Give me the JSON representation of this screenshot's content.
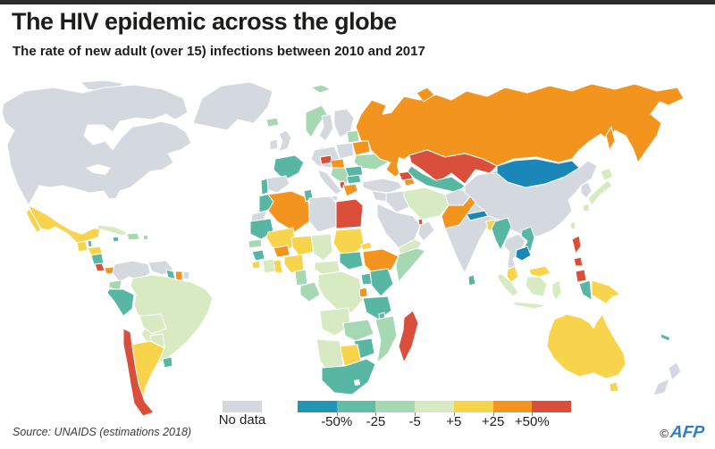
{
  "header": {
    "title": "The HIV epidemic across the globe",
    "subtitle": "The rate of new adult (over 15) infections between 2010 and 2017",
    "topbar_color": "#2b2b2a"
  },
  "legend": {
    "no_data_label": "No data",
    "no_data_color": "#d3d9de",
    "scale_ticks": [
      "-50%",
      "-25",
      "-5",
      "+5",
      "+25",
      "+50%"
    ],
    "scale_colors": [
      "#2196b4",
      "#62bda6",
      "#a6d8b4",
      "#d8eac2",
      "#f8d44d",
      "#f3941f",
      "#d94f3b"
    ]
  },
  "footer": {
    "source": "Source: UNAIDS (estimations 2018)",
    "credit_symbol": "©",
    "credit": "AFP",
    "credit_color": "#2e7fc1"
  },
  "map": {
    "ocean_color": "#ffffff",
    "palette": {
      "no_data": "#d3d9de",
      "m50": "#1b87b9",
      "m25": "#58b7a3",
      "dec5": "#a6d8b4",
      "stable": "#d8eac2",
      "inc5": "#f8d44d",
      "inc25": "#f3941f",
      "inc50": "#d94f3b"
    },
    "regions": [
      {
        "id": "greenland",
        "name": "Greenland",
        "category": "no_data"
      },
      {
        "id": "arctic-islands",
        "name": "Canadian Arctic islands",
        "category": "no_data"
      },
      {
        "id": "canada-usa",
        "name": "Canada and United States",
        "category": "no_data"
      },
      {
        "id": "mexico",
        "name": "Mexico",
        "category": "inc5"
      },
      {
        "id": "baja",
        "name": "Baja California",
        "category": "inc5"
      },
      {
        "id": "guatemala",
        "name": "Guatemala",
        "category": "inc5"
      },
      {
        "id": "belize",
        "name": "Belize",
        "category": "m25"
      },
      {
        "id": "honduras",
        "name": "Honduras",
        "category": "inc5"
      },
      {
        "id": "nicaragua",
        "name": "Nicaragua",
        "category": "m25"
      },
      {
        "id": "costa-rica",
        "name": "Costa Rica",
        "category": "inc50"
      },
      {
        "id": "panama",
        "name": "Panama",
        "category": "inc25"
      },
      {
        "id": "cuba",
        "name": "Cuba",
        "category": "stable"
      },
      {
        "id": "jamaica",
        "name": "Jamaica",
        "category": "m25"
      },
      {
        "id": "hispaniola",
        "name": "Hispaniola",
        "category": "dec5"
      },
      {
        "id": "puerto-rico",
        "name": "Puerto Rico",
        "category": "dec5"
      },
      {
        "id": "colombia",
        "name": "Colombia",
        "category": "no_data"
      },
      {
        "id": "venezuela",
        "name": "Venezuela",
        "category": "no_data"
      },
      {
        "id": "guyana",
        "name": "Guyana",
        "category": "m25"
      },
      {
        "id": "suriname",
        "name": "Suriname",
        "category": "inc25"
      },
      {
        "id": "fr-guiana",
        "name": "French Guiana",
        "category": "no_data"
      },
      {
        "id": "ecuador",
        "name": "Ecuador",
        "category": "dec5"
      },
      {
        "id": "peru",
        "name": "Peru",
        "category": "m25"
      },
      {
        "id": "brazil",
        "name": "Brazil",
        "category": "stable"
      },
      {
        "id": "bolivia",
        "name": "Bolivia",
        "category": "stable"
      },
      {
        "id": "paraguay",
        "name": "Paraguay",
        "category": "stable"
      },
      {
        "id": "argentina",
        "name": "Argentina",
        "category": "inc5"
      },
      {
        "id": "chile",
        "name": "Chile",
        "category": "inc50"
      },
      {
        "id": "uruguay",
        "name": "Uruguay",
        "category": "m25"
      },
      {
        "id": "iceland",
        "name": "Iceland",
        "category": "dec5"
      },
      {
        "id": "uk",
        "name": "United Kingdom",
        "category": "no_data"
      },
      {
        "id": "ireland",
        "name": "Ireland",
        "category": "no_data"
      },
      {
        "id": "norway",
        "name": "Norway",
        "category": "dec5"
      },
      {
        "id": "sweden",
        "name": "Sweden",
        "category": "no_data"
      },
      {
        "id": "finland",
        "name": "Finland",
        "category": "no_data"
      },
      {
        "id": "denmark",
        "name": "Denmark",
        "category": "no_data"
      },
      {
        "id": "baltics",
        "name": "Baltic states",
        "category": "dec5"
      },
      {
        "id": "poland",
        "name": "Poland",
        "category": "no_data"
      },
      {
        "id": "germany-central",
        "name": "Germany and central Europe",
        "category": "no_data"
      },
      {
        "id": "france",
        "name": "France",
        "category": "m25"
      },
      {
        "id": "spain",
        "name": "Spain",
        "category": "no_data"
      },
      {
        "id": "portugal",
        "name": "Portugal",
        "category": "m25"
      },
      {
        "id": "italy",
        "name": "Italy",
        "category": "no_data"
      },
      {
        "id": "sicily",
        "name": "Sicily",
        "category": "no_data"
      },
      {
        "id": "czech",
        "name": "Czechia",
        "category": "inc50"
      },
      {
        "id": "slovakia-hungary",
        "name": "Slovakia and Hungary",
        "category": "inc25"
      },
      {
        "id": "balkans",
        "name": "Western Balkans",
        "category": "dec5"
      },
      {
        "id": "albania",
        "name": "Albania",
        "category": "inc50"
      },
      {
        "id": "greece",
        "name": "Greece",
        "category": "inc25"
      },
      {
        "id": "romania",
        "name": "Romania",
        "category": "m25"
      },
      {
        "id": "bulgaria",
        "name": "Bulgaria",
        "category": "m25"
      },
      {
        "id": "ukraine",
        "name": "Ukraine",
        "category": "dec5"
      },
      {
        "id": "belarus",
        "name": "Belarus",
        "category": "inc25"
      },
      {
        "id": "russia",
        "name": "Russia",
        "category": "inc25"
      },
      {
        "id": "sakhalin",
        "name": "Sakhalin",
        "category": "inc25"
      },
      {
        "id": "novaya-zemlya",
        "name": "Novaya Zemlya",
        "category": "inc25"
      },
      {
        "id": "svalbard",
        "name": "Svalbard",
        "category": "dec5"
      },
      {
        "id": "kazakhstan",
        "name": "Kazakhstan",
        "category": "inc50"
      },
      {
        "id": "caucasus",
        "name": "Caucasus",
        "category": "inc50"
      },
      {
        "id": "caucasus2",
        "name": "Azerbaijan",
        "category": "inc25"
      },
      {
        "id": "central-asia",
        "name": "Uzbekistan and Turkmenistan",
        "category": "m25"
      },
      {
        "id": "kyrgyzstan",
        "name": "Kyrgyzstan",
        "category": "m25"
      },
      {
        "id": "tajikistan",
        "name": "Tajikistan",
        "category": "inc50"
      },
      {
        "id": "turkey",
        "name": "Turkey",
        "category": "no_data"
      },
      {
        "id": "syria",
        "name": "Syria and Levant",
        "category": "no_data"
      },
      {
        "id": "iraq",
        "name": "Iraq",
        "category": "no_data"
      },
      {
        "id": "iran",
        "name": "Iran",
        "category": "stable"
      },
      {
        "id": "saudi",
        "name": "Saudi Arabia",
        "category": "no_data"
      },
      {
        "id": "yemen",
        "name": "Yemen",
        "category": "stable"
      },
      {
        "id": "oman",
        "name": "Oman",
        "category": "no_data"
      },
      {
        "id": "qatar",
        "name": "Qatar",
        "category": "inc50"
      },
      {
        "id": "afghanistan",
        "name": "Afghanistan",
        "category": "no_data"
      },
      {
        "id": "pakistan",
        "name": "Pakistan",
        "category": "inc25"
      },
      {
        "id": "india",
        "name": "India",
        "category": "no_data"
      },
      {
        "id": "nepal",
        "name": "Nepal",
        "category": "m50"
      },
      {
        "id": "bangladesh",
        "name": "Bangladesh",
        "category": "inc5"
      },
      {
        "id": "sri-lanka",
        "name": "Sri Lanka",
        "category": "m25"
      },
      {
        "id": "china",
        "name": "China",
        "category": "no_data"
      },
      {
        "id": "mongolia",
        "name": "Mongolia",
        "category": "m50"
      },
      {
        "id": "korea",
        "name": "Korean peninsula",
        "category": "no_data"
      },
      {
        "id": "japan-hokkaido",
        "name": "Japan (Hokkaido)",
        "category": "stable"
      },
      {
        "id": "japan-honshu",
        "name": "Japan (Honshu)",
        "category": "stable"
      },
      {
        "id": "japan-kyushu",
        "name": "Japan (Kyushu)",
        "category": "stable"
      },
      {
        "id": "taiwan",
        "name": "Taiwan",
        "category": "stable"
      },
      {
        "id": "myanmar",
        "name": "Myanmar",
        "category": "m25"
      },
      {
        "id": "thailand",
        "name": "Thailand and Laos",
        "category": "no_data"
      },
      {
        "id": "vietnam",
        "name": "Vietnam",
        "category": "m25"
      },
      {
        "id": "cambodia",
        "name": "Cambodia",
        "category": "m50"
      },
      {
        "id": "malaysia-peninsula",
        "name": "Malaysia (peninsula)",
        "category": "inc5"
      },
      {
        "id": "malaysia-borneo",
        "name": "Malaysia (Borneo)",
        "category": "inc5"
      },
      {
        "id": "sumatra",
        "name": "Indonesia (Sumatra)",
        "category": "stable"
      },
      {
        "id": "borneo-indonesia",
        "name": "Indonesia (Kalimantan)",
        "category": "stable"
      },
      {
        "id": "java",
        "name": "Indonesia (Java)",
        "category": "stable"
      },
      {
        "id": "sulawesi",
        "name": "Indonesia (Sulawesi)",
        "category": "stable"
      },
      {
        "id": "philippines-luzon",
        "name": "Philippines (Luzon)",
        "category": "inc50"
      },
      {
        "id": "philippines-visayas",
        "name": "Philippines (Visayas)",
        "category": "inc50"
      },
      {
        "id": "philippines-mindanao",
        "name": "Philippines (Mindanao)",
        "category": "inc50"
      },
      {
        "id": "papua-indonesia",
        "name": "Indonesia (Papua)",
        "category": "m25"
      },
      {
        "id": "png",
        "name": "Papua New Guinea",
        "category": "inc5"
      },
      {
        "id": "australia",
        "name": "Australia",
        "category": "inc5"
      },
      {
        "id": "tasmania",
        "name": "Tasmania",
        "category": "inc5"
      },
      {
        "id": "nz-north",
        "name": "New Zealand (North Island)",
        "category": "no_data"
      },
      {
        "id": "nz-south",
        "name": "New Zealand (South Island)",
        "category": "no_data"
      },
      {
        "id": "new-caledonia",
        "name": "New Caledonia",
        "category": "m25"
      },
      {
        "id": "morocco",
        "name": "Morocco",
        "category": "m25"
      },
      {
        "id": "western-sahara",
        "name": "Western Sahara",
        "category": "no_data"
      },
      {
        "id": "algeria",
        "name": "Algeria",
        "category": "inc25"
      },
      {
        "id": "tunisia",
        "name": "Tunisia",
        "category": "m25"
      },
      {
        "id": "libya",
        "name": "Libya",
        "category": "no_data"
      },
      {
        "id": "egypt",
        "name": "Egypt",
        "category": "inc50"
      },
      {
        "id": "mauritania",
        "name": "Mauritania",
        "category": "m25"
      },
      {
        "id": "senegal",
        "name": "Senegal",
        "category": "dec5"
      },
      {
        "id": "guinea",
        "name": "Guinea",
        "category": "m25"
      },
      {
        "id": "sierra-leone",
        "name": "Sierra Leone",
        "category": "inc5"
      },
      {
        "id": "mali",
        "name": "Mali",
        "category": "inc5"
      },
      {
        "id": "ivory-coast",
        "name": "Côte d'Ivoire",
        "category": "stable"
      },
      {
        "id": "ghana",
        "name": "Ghana",
        "category": "inc5"
      },
      {
        "id": "burkina",
        "name": "Burkina Faso",
        "category": "inc25"
      },
      {
        "id": "niger",
        "name": "Niger",
        "category": "inc5"
      },
      {
        "id": "nigeria",
        "name": "Nigeria",
        "category": "inc5"
      },
      {
        "id": "cameroon",
        "name": "Cameroon",
        "category": "dec5"
      },
      {
        "id": "chad",
        "name": "Chad",
        "category": "stable"
      },
      {
        "id": "sudan",
        "name": "Sudan",
        "category": "inc5"
      },
      {
        "id": "eritrea",
        "name": "Eritrea",
        "category": "inc5"
      },
      {
        "id": "ethiopia",
        "name": "Ethiopia",
        "category": "inc25"
      },
      {
        "id": "somalia",
        "name": "Somalia",
        "category": "dec5"
      },
      {
        "id": "south-sudan",
        "name": "South Sudan",
        "category": "m25"
      },
      {
        "id": "car",
        "name": "Central African Republic",
        "category": "stable"
      },
      {
        "id": "congo-gabon",
        "name": "Congo and Gabon",
        "category": "dec5"
      },
      {
        "id": "drc",
        "name": "DR Congo",
        "category": "stable"
      },
      {
        "id": "uganda",
        "name": "Uganda",
        "category": "m25"
      },
      {
        "id": "kenya",
        "name": "Kenya",
        "category": "m25"
      },
      {
        "id": "rwanda-burundi",
        "name": "Rwanda and Burundi",
        "category": "inc25"
      },
      {
        "id": "tanzania",
        "name": "Tanzania",
        "category": "m25"
      },
      {
        "id": "angola",
        "name": "Angola",
        "category": "stable"
      },
      {
        "id": "zambia",
        "name": "Zambia",
        "category": "dec5"
      },
      {
        "id": "malawi",
        "name": "Malawi",
        "category": "m25"
      },
      {
        "id": "mozambique",
        "name": "Mozambique",
        "category": "dec5"
      },
      {
        "id": "zimbabwe",
        "name": "Zimbabwe",
        "category": "m25"
      },
      {
        "id": "botswana",
        "name": "Botswana",
        "category": "inc5"
      },
      {
        "id": "namibia",
        "name": "Namibia",
        "category": "stable"
      },
      {
        "id": "south-africa",
        "name": "South Africa",
        "category": "m25"
      },
      {
        "id": "madagascar",
        "name": "Madagascar",
        "category": "inc50"
      }
    ]
  }
}
